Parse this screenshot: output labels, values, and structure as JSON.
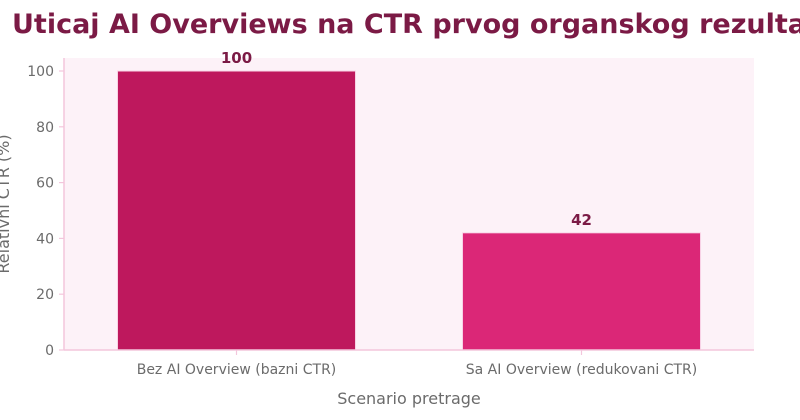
{
  "chart_data": {
    "type": "bar",
    "title": "Uticaj AI Overviews na CTR prvog organskog rezultata",
    "xlabel": "Scenario pretrage",
    "ylabel": "Relativni CTR (%)",
    "categories": [
      "Bez AI Overview (bazni CTR)",
      "Sa AI Overview (redukovani CTR)"
    ],
    "values": [
      100,
      42
    ],
    "data_labels": [
      "100",
      "42"
    ],
    "ylim": [
      0,
      100
    ],
    "yticks": [
      0,
      20,
      40,
      60,
      80,
      100
    ],
    "ytick_labels": [
      "0",
      "20",
      "40",
      "60",
      "80",
      "100"
    ],
    "grid": false,
    "legend": "none",
    "colors": {
      "title": "#7b1a45",
      "bars": [
        "#be185d",
        "#db2777"
      ],
      "plot_background": "#fdf2f8",
      "axis": "#f3c6dc",
      "ticks": "#6b6b6b",
      "labels": "#6b6b6b",
      "data_labels": "#7b1a45"
    }
  }
}
